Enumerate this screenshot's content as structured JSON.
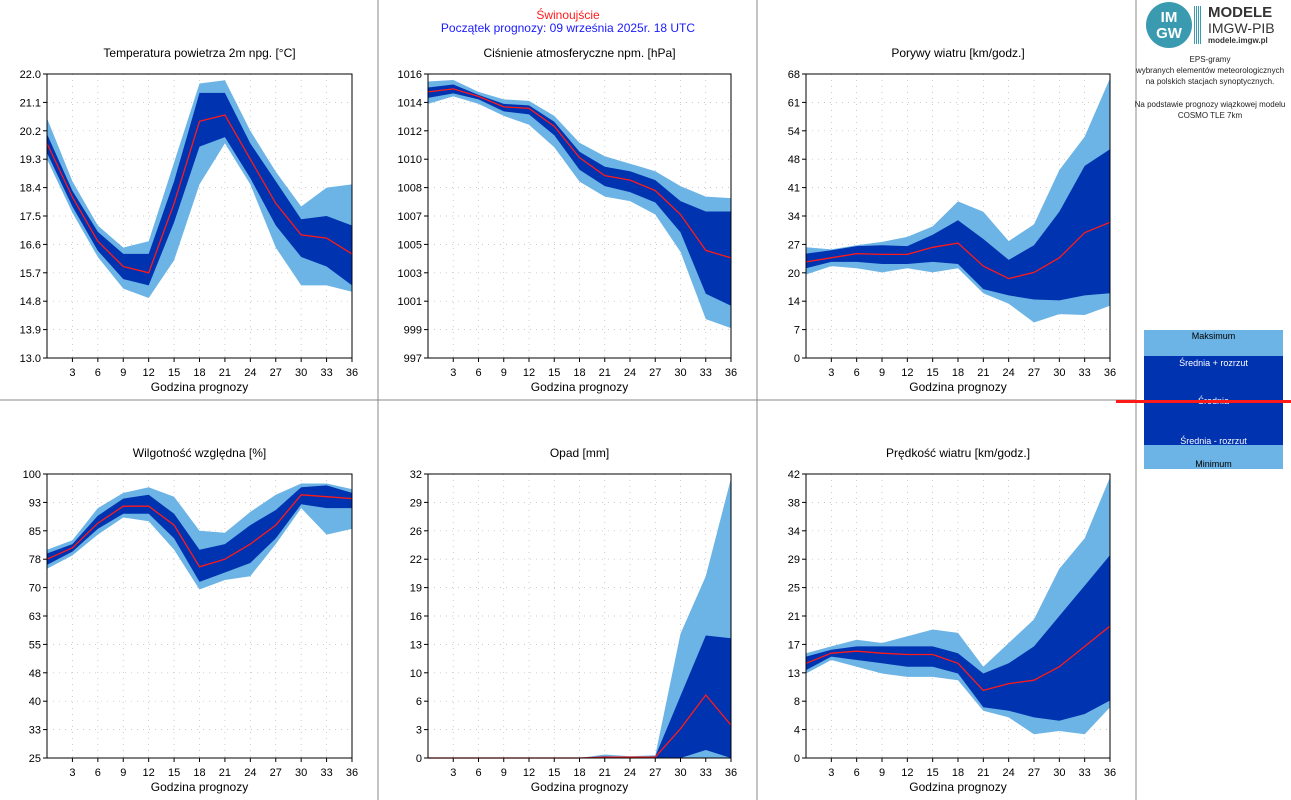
{
  "header": {
    "station": "Świnoujście",
    "forecast_start": "Początek prognozy: 09 września 2025r. 18 UTC"
  },
  "logo": {
    "circle_top": "IM",
    "circle_bottom": "GW",
    "title": "MODELE",
    "subtitle": "IMGW-PIB",
    "url": "modele.imgw.pl"
  },
  "sidebar": {
    "eps_lines": [
      "EPS-gramy",
      "wybranych elementów meteorologicznych",
      "na polskich stacjach  synoptycznych."
    ],
    "basis_lines": [
      "Na podstawie prognozy wiązkowej modelu",
      "COSMO TLE 7km"
    ]
  },
  "legend": {
    "max": "Maksimum",
    "mean_plus": "Średnia + rozrzut",
    "mean": "Średnia",
    "mean_minus": "Średnia - rozrzut",
    "min": "Minimum",
    "colors": {
      "outer": "#6cb4e6",
      "inner": "#0033b0",
      "mean": "#ff1a1a"
    }
  },
  "chart_data": [
    {
      "type": "area",
      "title": "Temperatura powietrza 2m npg. [°C]",
      "xlabel": "Godzina prognozy",
      "ylabel": "",
      "x": [
        0,
        3,
        6,
        9,
        12,
        15,
        18,
        21,
        24,
        27,
        30,
        33,
        36
      ],
      "x_ticks": [
        3,
        6,
        9,
        12,
        15,
        18,
        21,
        24,
        27,
        30,
        33,
        36
      ],
      "ylim": [
        13.0,
        22.0
      ],
      "y_ticks": [
        "13.0",
        "13.9",
        "14.8",
        "15.7",
        "16.6",
        "17.5",
        "18.4",
        "19.3",
        "20.2",
        "21.1",
        "22.0"
      ],
      "series": [
        {
          "name": "Maksimum",
          "values": [
            20.6,
            18.6,
            17.2,
            16.5,
            16.7,
            19.2,
            21.7,
            21.8,
            20.2,
            18.9,
            17.8,
            18.4,
            18.5
          ]
        },
        {
          "name": "Średnia + rozrzut",
          "values": [
            20.1,
            18.3,
            17.0,
            16.3,
            16.3,
            18.6,
            21.4,
            21.4,
            19.8,
            18.6,
            17.4,
            17.5,
            17.2
          ]
        },
        {
          "name": "Średnia",
          "values": [
            19.8,
            18.1,
            16.7,
            15.9,
            15.7,
            17.9,
            20.5,
            20.7,
            19.3,
            17.9,
            16.9,
            16.8,
            16.3
          ]
        },
        {
          "name": "Średnia - rozrzut",
          "values": [
            19.5,
            17.8,
            16.4,
            15.5,
            15.3,
            17.3,
            19.7,
            20.0,
            18.7,
            17.2,
            16.2,
            15.9,
            15.3
          ]
        },
        {
          "name": "Minimum",
          "values": [
            19.3,
            17.6,
            16.2,
            15.2,
            14.9,
            16.1,
            18.5,
            19.8,
            18.5,
            16.5,
            15.3,
            15.3,
            15.1
          ]
        }
      ]
    },
    {
      "type": "area",
      "title": "Ciśnienie atmosferyczne npm. [hPa]",
      "xlabel": "Godzina prognozy",
      "ylabel": "",
      "x": [
        0,
        3,
        6,
        9,
        12,
        15,
        18,
        21,
        24,
        27,
        30,
        33,
        36
      ],
      "x_ticks": [
        3,
        6,
        9,
        12,
        15,
        18,
        21,
        24,
        27,
        30,
        33,
        36
      ],
      "ylim": [
        997,
        1016
      ],
      "y_ticks": [
        "997",
        "999",
        "1001",
        "1003",
        "1005",
        "1007",
        "1008",
        "1010",
        "1012",
        "1014",
        "1016"
      ],
      "series": [
        {
          "name": "Maksimum",
          "values": [
            1015.5,
            1015.6,
            1014.8,
            1014.3,
            1014.2,
            1013.2,
            1011.4,
            1010.5,
            1010.0,
            1009.5,
            1008.5,
            1007.8,
            1007.7
          ]
        },
        {
          "name": "Średnia + rozrzut",
          "values": [
            1015.1,
            1015.3,
            1014.6,
            1014.0,
            1013.9,
            1012.8,
            1010.8,
            1009.8,
            1009.5,
            1008.9,
            1007.5,
            1006.8,
            1006.8
          ]
        },
        {
          "name": "Średnia",
          "values": [
            1014.8,
            1015.0,
            1014.5,
            1013.8,
            1013.7,
            1012.5,
            1010.4,
            1009.2,
            1008.9,
            1008.2,
            1006.6,
            1004.2,
            1003.7
          ]
        },
        {
          "name": "Średnia - rozrzut",
          "values": [
            1014.4,
            1014.7,
            1014.3,
            1013.5,
            1013.3,
            1011.9,
            1009.6,
            1008.5,
            1008.1,
            1007.4,
            1005.4,
            1001.3,
            1000.5
          ]
        },
        {
          "name": "Minimum",
          "values": [
            1014.0,
            1014.5,
            1014.0,
            1013.2,
            1012.6,
            1011.1,
            1008.8,
            1007.8,
            1007.5,
            1006.6,
            1004.1,
            999.6,
            999.0
          ]
        }
      ]
    },
    {
      "type": "area",
      "title": "Porywy wiatru [km/godz.]",
      "xlabel": "Godzina prognozy",
      "ylabel": "",
      "x": [
        0,
        3,
        6,
        9,
        12,
        15,
        18,
        21,
        24,
        27,
        30,
        33,
        36
      ],
      "x_ticks": [
        3,
        6,
        9,
        12,
        15,
        18,
        21,
        24,
        27,
        30,
        33,
        36
      ],
      "ylim": [
        0,
        68
      ],
      "y_ticks": [
        "0",
        "7",
        "14",
        "20",
        "27",
        "34",
        "41",
        "48",
        "54",
        "61",
        "68"
      ],
      "series": [
        {
          "name": "Maksimum",
          "values": [
            26.5,
            26.0,
            27.0,
            27.8,
            29.0,
            31.5,
            37.5,
            35.0,
            28.0,
            32.0,
            45.0,
            53.0,
            67.0
          ]
        },
        {
          "name": "Średnia + rozrzut",
          "values": [
            25.0,
            25.8,
            26.8,
            27.0,
            26.8,
            29.5,
            33.0,
            28.5,
            23.5,
            27.0,
            35.0,
            46.0,
            50.0
          ]
        },
        {
          "name": "Średnia",
          "values": [
            23.0,
            24.0,
            25.0,
            24.8,
            24.8,
            26.5,
            27.5,
            22.0,
            19.0,
            20.5,
            24.0,
            30.0,
            32.5
          ]
        },
        {
          "name": "Średnia - rozrzut",
          "values": [
            21.5,
            23.0,
            23.0,
            22.5,
            22.5,
            23.0,
            22.5,
            16.5,
            15.0,
            14.0,
            13.8,
            15.0,
            15.5
          ]
        },
        {
          "name": "Minimum",
          "values": [
            20.0,
            22.0,
            21.5,
            20.5,
            21.5,
            20.5,
            21.5,
            15.5,
            13.0,
            8.5,
            10.5,
            10.3,
            12.5
          ]
        }
      ]
    },
    {
      "type": "area",
      "title": "Wilgotność względna [%]",
      "xlabel": "Godzina prognozy",
      "ylabel": "",
      "x": [
        0,
        3,
        6,
        9,
        12,
        15,
        18,
        21,
        24,
        27,
        30,
        33,
        36
      ],
      "x_ticks": [
        3,
        6,
        9,
        12,
        15,
        18,
        21,
        24,
        27,
        30,
        33,
        36
      ],
      "ylim": [
        25,
        100
      ],
      "y_ticks": [
        "25",
        "33",
        "40",
        "48",
        "55",
        "63",
        "70",
        "78",
        "85",
        "93",
        "100"
      ],
      "series": [
        {
          "name": "Maksimum",
          "values": [
            80.0,
            82.5,
            91.0,
            95.0,
            96.5,
            94.0,
            85.0,
            84.5,
            90.0,
            94.5,
            97.5,
            97.5,
            96.0
          ]
        },
        {
          "name": "Średnia + rozrzut",
          "values": [
            79.0,
            81.5,
            89.0,
            93.5,
            94.5,
            89.5,
            80.0,
            81.5,
            86.5,
            90.5,
            96.5,
            97.0,
            95.0
          ]
        },
        {
          "name": "Średnia",
          "values": [
            77.5,
            80.5,
            87.0,
            91.5,
            91.5,
            86.5,
            75.5,
            77.5,
            81.5,
            86.5,
            94.5,
            94.0,
            93.5
          ]
        },
        {
          "name": "Średnia - rozrzut",
          "values": [
            76.0,
            79.5,
            85.5,
            89.5,
            89.5,
            83.0,
            71.5,
            74.0,
            76.5,
            83.0,
            92.0,
            91.0,
            91.0
          ]
        },
        {
          "name": "Minimum",
          "values": [
            75.0,
            78.5,
            84.0,
            88.5,
            87.5,
            80.0,
            69.5,
            72.0,
            73.0,
            81.5,
            91.0,
            84.0,
            85.5
          ]
        }
      ]
    },
    {
      "type": "area",
      "title": "Opad [mm]",
      "xlabel": "Godzina prognozy",
      "ylabel": "",
      "x": [
        0,
        3,
        6,
        9,
        12,
        15,
        18,
        21,
        24,
        27,
        30,
        33,
        36
      ],
      "x_ticks": [
        3,
        6,
        9,
        12,
        15,
        18,
        21,
        24,
        27,
        30,
        33,
        36
      ],
      "ylim": [
        0,
        32
      ],
      "y_ticks": [
        "0",
        "3",
        "6",
        "10",
        "13",
        "16",
        "19",
        "22",
        "26",
        "29",
        "32"
      ],
      "series": [
        {
          "name": "Maksimum",
          "values": [
            0,
            0,
            0,
            0,
            0,
            0,
            0,
            0.4,
            0.2,
            0.3,
            14.0,
            20.5,
            31.5
          ]
        },
        {
          "name": "Średnia + rozrzut",
          "values": [
            0,
            0,
            0,
            0,
            0,
            0,
            0,
            0.2,
            0.1,
            0.2,
            7.0,
            13.8,
            13.5
          ]
        },
        {
          "name": "Średnia",
          "values": [
            0,
            0,
            0,
            0,
            0,
            0,
            0,
            0.1,
            0.1,
            0.1,
            3.3,
            7.1,
            3.7
          ]
        },
        {
          "name": "Średnia - rozrzut",
          "values": [
            0,
            0,
            0,
            0,
            0,
            0,
            0,
            0,
            0,
            0,
            0,
            0.9,
            0
          ]
        },
        {
          "name": "Minimum",
          "values": [
            0,
            0,
            0,
            0,
            0,
            0,
            0,
            0,
            0,
            0,
            0,
            0,
            0
          ]
        }
      ]
    },
    {
      "type": "area",
      "title": "Prędkość wiatru [km/godz.]",
      "xlabel": "Godzina prognozy",
      "ylabel": "",
      "x": [
        0,
        3,
        6,
        9,
        12,
        15,
        18,
        21,
        24,
        27,
        30,
        33,
        36
      ],
      "x_ticks": [
        3,
        6,
        9,
        12,
        15,
        18,
        21,
        24,
        27,
        30,
        33,
        36
      ],
      "ylim": [
        0,
        42
      ],
      "y_ticks": [
        "0",
        "4",
        "8",
        "13",
        "17",
        "21",
        "25",
        "29",
        "34",
        "38",
        "42"
      ],
      "series": [
        {
          "name": "Maksimum",
          "values": [
            15.5,
            16.5,
            17.5,
            17.0,
            18.0,
            19.0,
            18.5,
            13.5,
            17.0,
            20.5,
            28.0,
            32.5,
            41.5
          ]
        },
        {
          "name": "Średnia + rozrzut",
          "values": [
            15.0,
            16.0,
            16.5,
            16.5,
            16.5,
            16.5,
            15.5,
            12.5,
            14.0,
            16.5,
            21.0,
            25.5,
            30.0
          ]
        },
        {
          "name": "Średnia",
          "values": [
            14.0,
            15.5,
            15.8,
            15.5,
            15.3,
            15.3,
            14.0,
            10.0,
            11.0,
            11.5,
            13.5,
            16.5,
            19.5
          ]
        },
        {
          "name": "Średnia - rozrzut",
          "values": [
            13.0,
            15.0,
            14.5,
            14.0,
            13.5,
            13.5,
            12.5,
            7.5,
            7.0,
            6.0,
            5.5,
            6.5,
            8.5
          ]
        },
        {
          "name": "Minimum",
          "values": [
            12.5,
            14.5,
            13.5,
            12.5,
            12.0,
            12.0,
            11.5,
            7.0,
            6.0,
            3.5,
            4.0,
            3.5,
            7.5
          ]
        }
      ]
    }
  ]
}
